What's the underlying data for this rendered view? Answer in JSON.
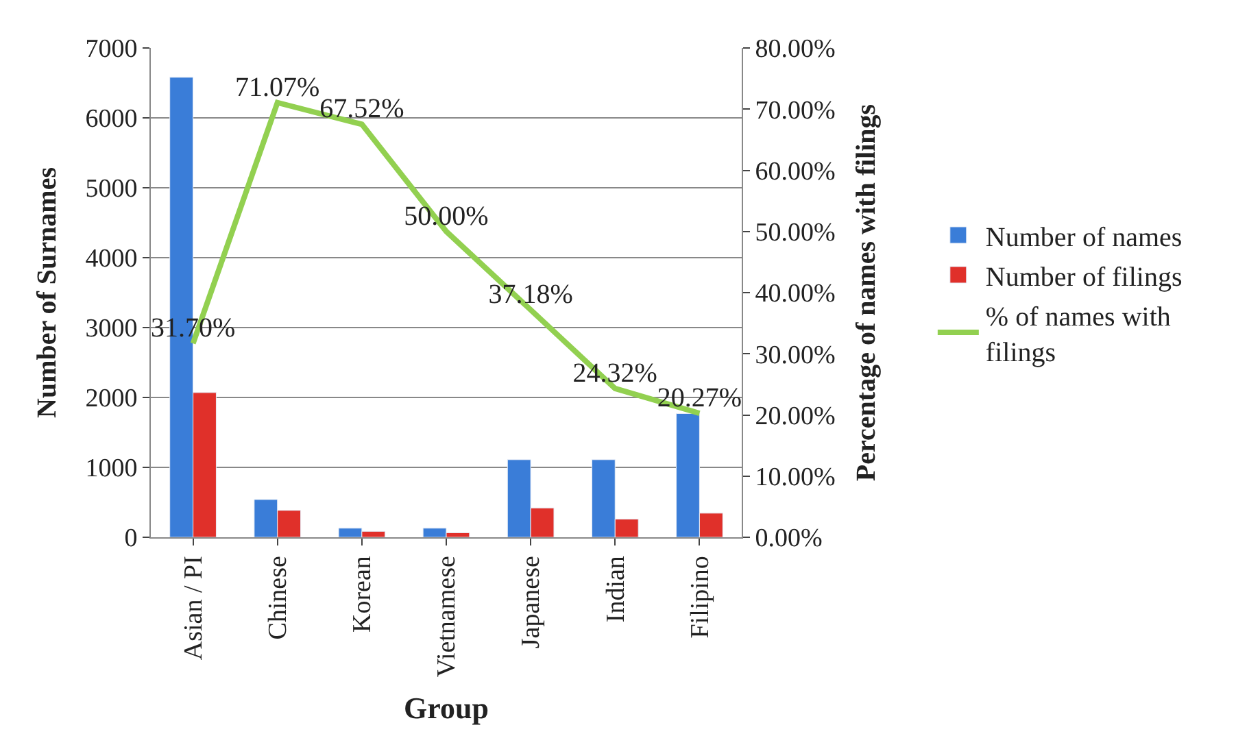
{
  "chart_data": {
    "type": "bar",
    "xlabel": "Group",
    "ylabel": "Number of Surnames",
    "y2label": "Percentage of names with filings",
    "categories": [
      "Asian / PI",
      "Chinese",
      "Korean",
      "Vietnamese",
      "Japanese",
      "Indian",
      "Filipino"
    ],
    "series": [
      {
        "name": "Number of names",
        "color": "#3a7dd8",
        "values": [
          6580,
          540,
          130,
          130,
          1110,
          1110,
          1770
        ]
      },
      {
        "name": "Number of filings",
        "color": "#e0302a",
        "values": [
          2070,
          385,
          85,
          65,
          420,
          260,
          345
        ]
      },
      {
        "name": "% of names with filings",
        "type": "line",
        "axis": "y2",
        "color": "#92d050",
        "values": [
          31.7,
          71.07,
          67.52,
          50.0,
          37.18,
          24.32,
          20.27
        ],
        "value_labels": [
          "31.70%",
          "71.07%",
          "67.52%",
          "50.00%",
          "37.18%",
          "24.32%",
          "20.27%"
        ]
      }
    ],
    "ylim": [
      0,
      7000
    ],
    "yticks": [
      0,
      1000,
      2000,
      3000,
      4000,
      5000,
      6000,
      7000
    ],
    "y2lim": [
      0,
      80
    ],
    "y2ticks": [
      {
        "value": 0,
        "label": "0.00%"
      },
      {
        "value": 10,
        "label": "10.00%"
      },
      {
        "value": 20,
        "label": "20.00%"
      },
      {
        "value": 30,
        "label": "30.00%"
      },
      {
        "value": 40,
        "label": "40.00%"
      },
      {
        "value": 50,
        "label": "50.00%"
      },
      {
        "value": 60,
        "label": "60.00%"
      },
      {
        "value": 70,
        "label": "70.00%"
      },
      {
        "value": 80,
        "label": "80.00%"
      }
    ],
    "grid": "y",
    "legend": "right",
    "marker": "none"
  }
}
